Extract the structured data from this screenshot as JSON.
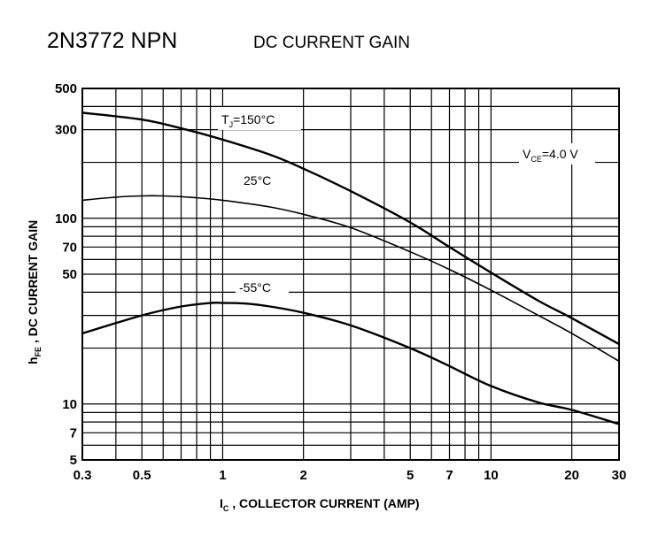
{
  "page": {
    "title": "2N3772 NPN",
    "subtitle": "DC CURRENT GAIN"
  },
  "chart_data": {
    "type": "line",
    "title": "2N3772 NPN",
    "subtitle": "DC CURRENT GAIN",
    "xlabel": "I",
    "xlabel_sub": "C",
    "xlabel_rest": " , COLLECTOR CURRENT (AMP)",
    "ylabel": "h",
    "ylabel_sub": "FE",
    "ylabel_rest": " , DC CURRENT GAIN",
    "xscale": "log",
    "yscale": "log",
    "xlim": [
      0.3,
      30
    ],
    "ylim": [
      5,
      500
    ],
    "grid": true,
    "x_ticks": [
      {
        "value": 0.3,
        "label": "0.3"
      },
      {
        "value": 0.5,
        "label": "0.5"
      },
      {
        "value": 1,
        "label": "1"
      },
      {
        "value": 2,
        "label": "2"
      },
      {
        "value": 5,
        "label": "5"
      },
      {
        "value": 7,
        "label": "7"
      },
      {
        "value": 10,
        "label": "10"
      },
      {
        "value": 20,
        "label": "20"
      },
      {
        "value": 30,
        "label": "30"
      }
    ],
    "y_ticks": [
      {
        "value": 5,
        "label": "5"
      },
      {
        "value": 7,
        "label": "7"
      },
      {
        "value": 10,
        "label": "10"
      },
      {
        "value": 50,
        "label": "50"
      },
      {
        "value": 70,
        "label": "70"
      },
      {
        "value": 100,
        "label": "100"
      },
      {
        "value": 300,
        "label": "300"
      },
      {
        "value": 500,
        "label": "500"
      }
    ],
    "x_grid": [
      0.3,
      0.4,
      0.5,
      0.6,
      0.7,
      0.8,
      0.9,
      1,
      2,
      3,
      4,
      5,
      6,
      7,
      8,
      9,
      10,
      20,
      30
    ],
    "y_grid": [
      5,
      6,
      7,
      8,
      9,
      10,
      20,
      30,
      40,
      50,
      60,
      70,
      80,
      90,
      100,
      200,
      300,
      400,
      500
    ],
    "annotations": [
      {
        "label": "T",
        "sub": "J",
        "rest": "=150°C"
      },
      {
        "label": "25°C"
      },
      {
        "label": "-55°C"
      },
      {
        "label": "V",
        "sub": "CE",
        "rest": "=4.0 V"
      }
    ],
    "series": [
      {
        "name": "TJ=150°C",
        "x": [
          0.3,
          0.5,
          0.7,
          1,
          1.5,
          2,
          3,
          5,
          7,
          10,
          15,
          20,
          30
        ],
        "y": [
          370,
          340,
          305,
          265,
          220,
          185,
          140,
          95,
          70,
          51,
          36,
          29,
          21
        ]
      },
      {
        "name": "25°C",
        "x": [
          0.3,
          0.4,
          0.5,
          0.6,
          0.8,
          1,
          1.5,
          2,
          3,
          5,
          7,
          10,
          15,
          20,
          30
        ],
        "y": [
          125,
          130,
          132,
          132,
          129,
          125,
          115,
          105,
          89,
          66,
          53,
          41,
          30,
          24,
          17
        ]
      },
      {
        "name": "-55°C",
        "x": [
          0.3,
          0.5,
          0.7,
          0.9,
          1,
          1.2,
          1.5,
          2,
          3,
          5,
          7,
          10,
          15,
          20,
          30
        ],
        "y": [
          24,
          30,
          33.5,
          35,
          35,
          34.8,
          33.5,
          31,
          26.5,
          20,
          16,
          12.5,
          10.2,
          9.3,
          7.8
        ]
      }
    ]
  }
}
